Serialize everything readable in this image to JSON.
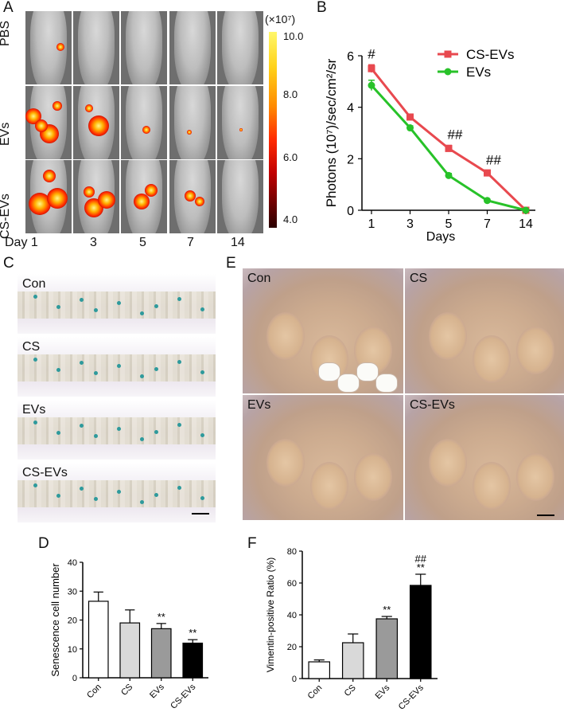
{
  "panels": {
    "A": "A",
    "B": "B",
    "C": "C",
    "D": "D",
    "E": "E",
    "F": "F"
  },
  "panel_a": {
    "rows": [
      "PBS",
      "EVs",
      "CS-EVs"
    ],
    "columns": [
      "Day 1",
      "3",
      "5",
      "7",
      "14"
    ],
    "colorbar_exponent": "(×10⁷)",
    "colorbar_ticks": [
      "10.0",
      "8.0",
      "6.0",
      "4.0"
    ]
  },
  "panel_c": {
    "labels": [
      "Con",
      "CS",
      "EVs",
      "CS-EVs"
    ]
  },
  "panel_e": {
    "labels": [
      "Con",
      "CS",
      "EVs",
      "CS-EVs"
    ]
  },
  "chart_data": [
    {
      "panel": "B",
      "type": "line",
      "xlabel": "Days",
      "ylabel": "Photons (10⁷)/sec/cm²/sr",
      "x": [
        1,
        3,
        5,
        7,
        14
      ],
      "ylim": [
        0,
        6
      ],
      "yticks": [
        0,
        2,
        4,
        6
      ],
      "legend_position": "top-right",
      "series": [
        {
          "name": "CS-EVs",
          "color": "#e8494f",
          "values": [
            5.5,
            3.62,
            2.4,
            1.45,
            0
          ],
          "errors": [
            0.15,
            0.08,
            0.12,
            0.08,
            0
          ]
        },
        {
          "name": "EVs",
          "color": "#28c229",
          "values": [
            4.85,
            3.2,
            1.35,
            0.38,
            0
          ],
          "errors": [
            0.2,
            0.08,
            0.08,
            0.05,
            0
          ]
        }
      ],
      "annotations": [
        {
          "x": 1,
          "text": "#"
        },
        {
          "x": 5,
          "text": "##"
        },
        {
          "x": 7,
          "text": "##"
        }
      ]
    },
    {
      "panel": "D",
      "type": "bar",
      "ylabel": "Senescence cell number",
      "categories": [
        "Con",
        "CS",
        "EVs",
        "CS-EVs"
      ],
      "values": [
        26.5,
        19,
        17,
        12
      ],
      "errors": [
        3.2,
        4.5,
        1.8,
        1.2
      ],
      "colors": [
        "#ffffff",
        "#d9d9d9",
        "#9a9a9a",
        "#000000"
      ],
      "ylim": [
        0,
        40
      ],
      "yticks": [
        0,
        10,
        20,
        30,
        40
      ],
      "annotations": [
        "",
        "",
        "**",
        "**"
      ]
    },
    {
      "panel": "F",
      "type": "bar",
      "ylabel": "Vimentin-positive Ratio (%)",
      "categories": [
        "Con",
        "CS",
        "EVs",
        "CS-EVs"
      ],
      "values": [
        10.5,
        22.5,
        37.5,
        58.5
      ],
      "errors": [
        1.2,
        5.5,
        1.5,
        7
      ],
      "colors": [
        "#ffffff",
        "#d9d9d9",
        "#9a9a9a",
        "#000000"
      ],
      "ylim": [
        0,
        80
      ],
      "yticks": [
        0,
        20,
        40,
        60,
        80
      ],
      "annotations": [
        "",
        "",
        "**",
        "##\n**"
      ]
    }
  ]
}
